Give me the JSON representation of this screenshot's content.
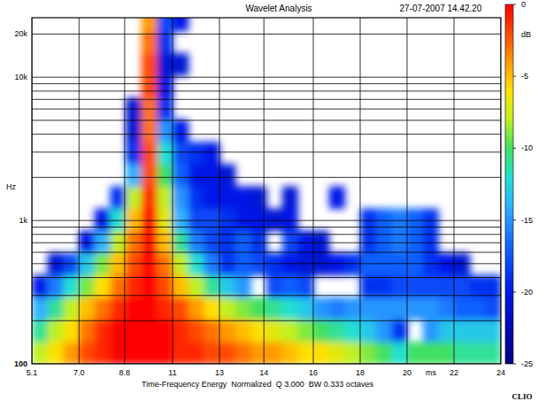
{
  "chart_data": {
    "type": "heatmap",
    "title": "Wavelet Analysis",
    "subtitle": "27-07-2007 14.42.20",
    "x_label": "ms",
    "y_label": "Hz",
    "caption": "Time-Frequency Energy  Normalized  Q 3.000  BW 0.333 octaves",
    "annotations": [
      "CLIO"
    ],
    "log": "y",
    "grid": true,
    "xlim": [
      5.1,
      24
    ],
    "ylim": [
      100,
      26000
    ],
    "xticks": [
      5.1,
      {
        "value": 7.0,
        "label": "7.0"
      },
      {
        "value": 8.84,
        "label": "8.8"
      },
      {
        "value": 10.77,
        "label": "11"
      },
      {
        "value": 12.66,
        "label": "13"
      },
      {
        "value": 14.45,
        "label": "14"
      },
      {
        "value": 16.44,
        "label": "16"
      },
      {
        "value": 18.33,
        "label": "18"
      },
      {
        "value": 20.22,
        "label": "20"
      },
      {
        "value": 22.11,
        "label": "22"
      },
      24
    ],
    "yticks": [
      100,
      {
        "value": 200,
        "label": null
      },
      {
        "value": 300,
        "label": null
      },
      {
        "value": 400,
        "label": null
      },
      {
        "value": 500,
        "label": null
      },
      {
        "value": 600,
        "label": null
      },
      {
        "value": 700,
        "label": null
      },
      {
        "value": 800,
        "label": null
      },
      {
        "value": 900,
        "label": null
      },
      {
        "value": 1000,
        "label": "1k"
      },
      {
        "value": 2000,
        "label": null
      },
      {
        "value": 3000,
        "label": null
      },
      {
        "value": 4000,
        "label": null
      },
      {
        "value": 5000,
        "label": null
      },
      {
        "value": 6000,
        "label": null
      },
      {
        "value": 7000,
        "label": null
      },
      {
        "value": 8000,
        "label": null
      },
      {
        "value": 9000,
        "label": null
      },
      {
        "value": 10000,
        "label": "10k"
      },
      {
        "value": 20000,
        "label": "20k"
      }
    ],
    "zlim": [
      -25,
      0
    ],
    "zticks": [
      0,
      -5,
      -10,
      -15,
      -20,
      -25
    ],
    "z_label": "dB",
    "x": [
      5.42,
      6.05,
      6.68,
      7.31,
      7.94,
      8.57,
      9.2,
      9.83,
      10.46,
      11.09,
      11.72,
      12.35,
      12.98,
      13.61,
      14.24,
      14.87,
      15.5,
      16.13,
      16.76,
      17.39,
      18.02,
      18.65,
      19.28,
      19.91,
      20.54,
      21.17,
      21.8,
      22.43,
      23.06,
      23.69
    ],
    "y": [
      119,
      171,
      244,
      348,
      498,
      711,
      1015,
      1450,
      2071,
      2958,
      4227,
      6038,
      8616,
      12303,
      17579,
      25119
    ],
    "values": [
      [
        -8,
        -6,
        -4,
        -2,
        -1,
        0,
        0,
        0,
        0,
        -1,
        -1,
        -2,
        -2,
        -3,
        -4,
        -4,
        -5,
        -6,
        -6,
        -7,
        -8,
        -9,
        -10,
        -12,
        -10,
        -10,
        -10,
        -11,
        -11,
        -11
      ],
      [
        -11,
        -8,
        -6,
        -3,
        -1,
        0,
        0,
        0,
        0,
        -1,
        -2,
        -3,
        -4,
        -5,
        -6,
        -7,
        -8,
        -9,
        -10,
        -11,
        -12,
        -13,
        -15,
        -19,
        null,
        -15,
        -13,
        -13,
        -13,
        -13
      ],
      [
        -14,
        -11,
        -8,
        -5,
        -3,
        -1,
        0,
        0,
        -1,
        -2,
        -4,
        -6,
        -8,
        -9,
        -10,
        -11,
        -12,
        -13,
        -15,
        -16,
        -15,
        -15,
        -15,
        -15,
        -15,
        -15,
        -16,
        -17,
        -17,
        -18
      ],
      [
        -20,
        -16,
        -12,
        -9,
        -6,
        -3,
        -1,
        0,
        -2,
        -5,
        -8,
        -11,
        -13,
        -15,
        null,
        -18,
        -17,
        -18,
        null,
        null,
        null,
        -19,
        -19,
        -18,
        -18,
        -18,
        -18,
        -18,
        -19,
        -19
      ],
      [
        null,
        -21,
        -18,
        -13,
        -9,
        -5,
        -2,
        0,
        -3,
        -8,
        -12,
        -16,
        -19,
        -17,
        -18,
        -19,
        -20,
        -21,
        -21,
        -20,
        -19,
        -17,
        -17,
        -17,
        -17,
        -19,
        -20,
        -21,
        null,
        null
      ],
      [
        null,
        null,
        null,
        -20,
        -14,
        -8,
        -3,
        0,
        -5,
        -11,
        -16,
        -18,
        -19,
        -17,
        -19,
        null,
        -18,
        -20,
        -21,
        null,
        null,
        -19,
        -17,
        -16,
        -17,
        -19,
        null,
        null,
        null,
        null
      ],
      [
        null,
        null,
        null,
        null,
        -20,
        -12,
        -5,
        0,
        -7,
        -14,
        -18,
        -18,
        -19,
        -20,
        -20,
        -21,
        -20,
        null,
        null,
        null,
        null,
        -19,
        -17,
        -16,
        -17,
        -19,
        null,
        null,
        null,
        null
      ],
      [
        null,
        null,
        null,
        null,
        null,
        -19,
        -8,
        -1,
        -8,
        -15,
        -19,
        -20,
        -20,
        -20,
        -21,
        null,
        -21,
        null,
        null,
        -20,
        null,
        null,
        null,
        null,
        null,
        null,
        null,
        null,
        null,
        null
      ],
      [
        null,
        null,
        null,
        null,
        null,
        null,
        -14,
        -2,
        -10,
        -17,
        -20,
        -20,
        -21,
        null,
        null,
        null,
        null,
        null,
        null,
        null,
        null,
        null,
        null,
        null,
        null,
        null,
        null,
        null,
        null,
        null
      ],
      [
        null,
        null,
        null,
        null,
        null,
        null,
        -19,
        -2,
        -12,
        -18,
        -19,
        -20,
        null,
        null,
        null,
        null,
        null,
        null,
        null,
        null,
        null,
        null,
        null,
        null,
        null,
        null,
        null,
        null,
        null,
        null
      ],
      [
        null,
        null,
        null,
        null,
        null,
        null,
        -21,
        -3,
        -15,
        -20,
        null,
        null,
        null,
        null,
        null,
        null,
        null,
        null,
        null,
        null,
        null,
        null,
        null,
        null,
        null,
        null,
        null,
        null,
        null,
        null
      ],
      [
        null,
        null,
        null,
        null,
        null,
        null,
        -21,
        -3,
        -19,
        null,
        null,
        null,
        null,
        null,
        null,
        null,
        null,
        null,
        null,
        null,
        null,
        null,
        null,
        null,
        null,
        null,
        null,
        null,
        null,
        null
      ],
      [
        null,
        null,
        null,
        null,
        null,
        null,
        null,
        -2,
        -20,
        null,
        null,
        null,
        null,
        null,
        null,
        null,
        null,
        null,
        null,
        null,
        null,
        null,
        null,
        null,
        null,
        null,
        null,
        null,
        null,
        null
      ],
      [
        null,
        null,
        null,
        null,
        null,
        null,
        null,
        -2,
        -21,
        -21,
        null,
        null,
        null,
        null,
        null,
        null,
        null,
        null,
        null,
        null,
        null,
        null,
        null,
        null,
        null,
        null,
        null,
        null,
        null,
        null
      ],
      [
        null,
        null,
        null,
        null,
        null,
        null,
        null,
        -3,
        -19,
        null,
        null,
        null,
        null,
        null,
        null,
        null,
        null,
        null,
        null,
        null,
        null,
        null,
        null,
        null,
        null,
        null,
        null,
        null,
        null,
        null
      ],
      [
        null,
        null,
        null,
        null,
        null,
        null,
        null,
        -4,
        -18,
        -20,
        null,
        null,
        null,
        null,
        null,
        null,
        null,
        null,
        null,
        null,
        null,
        null,
        null,
        null,
        null,
        null,
        null,
        null,
        null,
        null
      ]
    ]
  }
}
